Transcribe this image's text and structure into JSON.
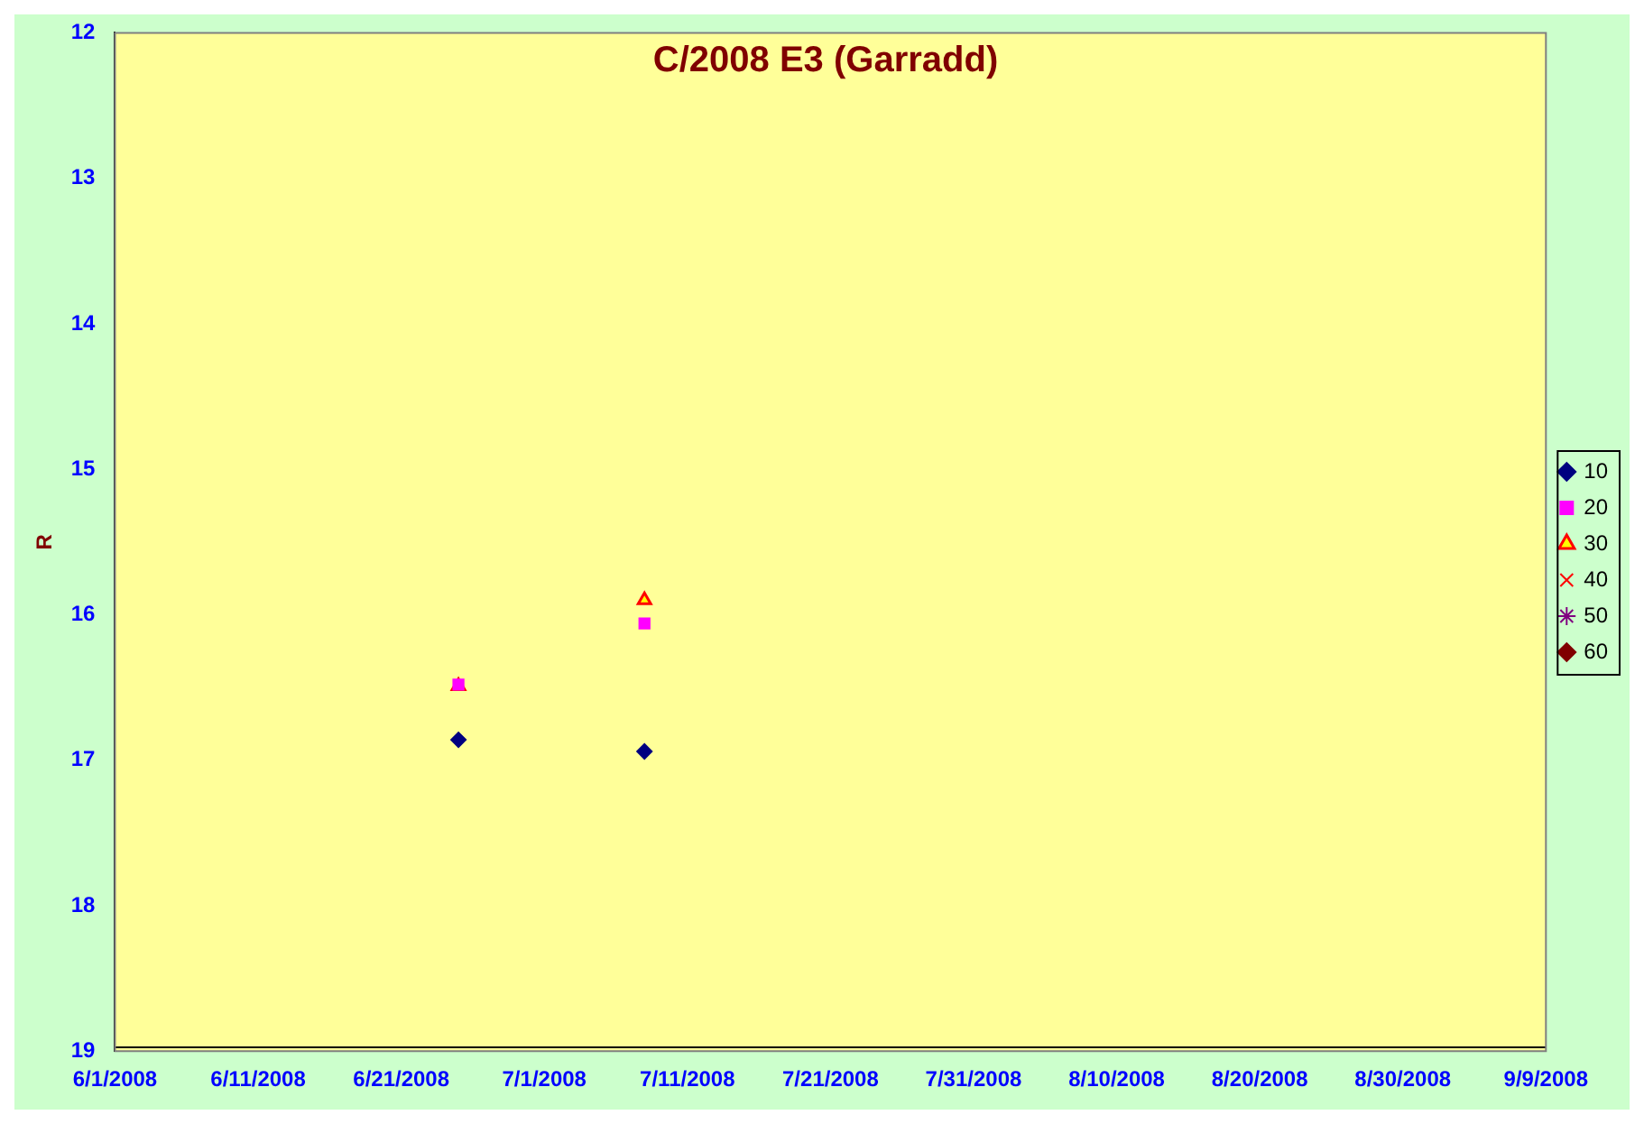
{
  "chart_data": {
    "type": "scatter",
    "title": "C/2008 E3 (Garradd)",
    "ylabel": "R",
    "xlim": [
      "2008-06-01",
      "2008-09-09"
    ],
    "xticks": [
      {
        "value": "2008-06-01",
        "label": "6/1/2008"
      },
      {
        "value": "2008-06-11",
        "label": "6/11/2008"
      },
      {
        "value": "2008-06-21",
        "label": "6/21/2008"
      },
      {
        "value": "2008-07-01",
        "label": "7/1/2008"
      },
      {
        "value": "2008-07-11",
        "label": "7/11/2008"
      },
      {
        "value": "2008-07-21",
        "label": "7/21/2008"
      },
      {
        "value": "2008-07-31",
        "label": "7/31/2008"
      },
      {
        "value": "2008-08-10",
        "label": "8/10/2008"
      },
      {
        "value": "2008-08-20",
        "label": "8/20/2008"
      },
      {
        "value": "2008-08-30",
        "label": "8/30/2008"
      },
      {
        "value": "2008-09-09",
        "label": "9/9/2008"
      }
    ],
    "ylim": [
      19,
      12
    ],
    "yticks": [
      12,
      13,
      14,
      15,
      16,
      17,
      18,
      19
    ],
    "grid": false,
    "legend": "right",
    "series": [
      {
        "name": "10",
        "color": "#000080",
        "marker": "diamond",
        "x": [
          "2008-06-25",
          "2008-07-08"
        ],
        "values": [
          16.86,
          16.94
        ]
      },
      {
        "name": "20",
        "color": "#ff00ff",
        "marker": "square",
        "x": [
          "2008-06-25",
          "2008-07-08"
        ],
        "values": [
          16.48,
          16.06
        ]
      },
      {
        "name": "30",
        "color": "#ff0000",
        "marker": "triangle",
        "x": [
          "2008-06-25",
          "2008-07-08"
        ],
        "values": [
          16.49,
          15.9
        ]
      },
      {
        "name": "40",
        "color": "#ff0000",
        "marker": "cross"
      },
      {
        "name": "50",
        "color": "#800080",
        "marker": "star"
      },
      {
        "name": "60",
        "color": "#800000",
        "marker": "diamond"
      }
    ]
  }
}
